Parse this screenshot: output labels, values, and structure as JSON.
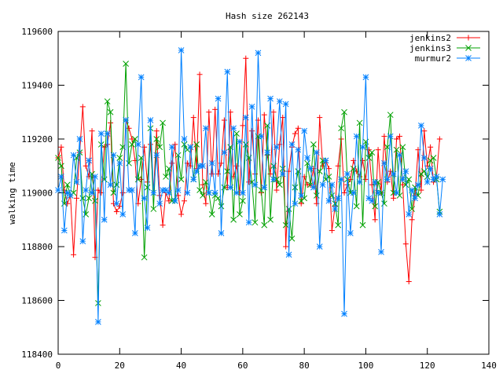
{
  "chart_data": {
    "type": "line",
    "title": "Hash size 262143",
    "xlabel": "",
    "ylabel": "walking time",
    "xlim": [
      0,
      140
    ],
    "ylim": [
      118400,
      119600
    ],
    "xticks": [
      0,
      20,
      40,
      60,
      80,
      100,
      120,
      140
    ],
    "yticks": [
      118400,
      118600,
      118800,
      119000,
      119200,
      119400,
      119600
    ],
    "grid": false,
    "legend": "top-right",
    "series": [
      {
        "name": "jenkins2",
        "color": "#ff0000",
        "marker": "plus",
        "values": [
          119130,
          119170,
          119010,
          118960,
          118990,
          118770,
          118980,
          119150,
          119320,
          119100,
          119060,
          119230,
          118760,
          119010,
          119000,
          119170,
          119180,
          119260,
          118960,
          118930,
          118950,
          119000,
          119270,
          119240,
          119200,
          119120,
          118960,
          119050,
          119170,
          119040,
          119180,
          119000,
          119230,
          118990,
          118880,
          119000,
          118970,
          119110,
          119180,
          118990,
          118920,
          118970,
          119110,
          119100,
          119280,
          119090,
          119440,
          119030,
          118960,
          119300,
          119070,
          119310,
          119070,
          119110,
          119270,
          119020,
          119300,
          119060,
          119100,
          119000,
          119250,
          119500,
          119040,
          119230,
          119070,
          119270,
          119000,
          119290,
          119140,
          119070,
          119300,
          119010,
          119180,
          119280,
          118800,
          119080,
          119170,
          119220,
          119240,
          118960,
          119060,
          119030,
          119030,
          119090,
          118960,
          119280,
          119100,
          119120,
          119090,
          118860,
          118950,
          119100,
          119200,
          119000,
          119030,
          119050,
          119120,
          119080,
          119060,
          119120,
          119050,
          119160,
          119030,
          118900,
          119160,
          119000,
          119210,
          119040,
          119080,
          118980,
          119200,
          119210,
          119030,
          118810,
          118670,
          118900,
          118990,
          119160,
          119010,
          119230,
          119100,
          119170,
          119040,
          119060,
          119200
        ]
      },
      {
        "name": "jenkins3",
        "color": "#00a000",
        "marker": "x",
        "values": [
          119130,
          119100,
          118960,
          119030,
          118990,
          119000,
          119130,
          119150,
          118980,
          118920,
          118980,
          119070,
          118970,
          118590,
          119180,
          119050,
          119340,
          119300,
          119000,
          119030,
          119130,
          119170,
          119480,
          119110,
          119180,
          119200,
          119050,
          119130,
          118760,
          119020,
          119240,
          118940,
          119200,
          119170,
          119260,
          119060,
          119090,
          118970,
          118970,
          119140,
          119050,
          119180,
          119160,
          119170,
          119050,
          119180,
          119010,
          118990,
          119040,
          119000,
          118920,
          118990,
          118980,
          118950,
          119020,
          119080,
          119170,
          118900,
          119220,
          118920,
          118970,
          119180,
          119130,
          119040,
          118890,
          119210,
          119010,
          118880,
          119250,
          118900,
          119100,
          119050,
          119030,
          119090,
          118880,
          118940,
          118830,
          119020,
          119080,
          118970,
          118980,
          119110,
          119030,
          119180,
          118990,
          119080,
          119120,
          119050,
          119060,
          118990,
          118960,
          118880,
          119240,
          119300,
          119050,
          119000,
          119090,
          118950,
          119260,
          118880,
          119190,
          119130,
          119150,
          118950,
          119040,
          119000,
          118960,
          119170,
          119290,
          119000,
          119160,
          118990,
          119170,
          119030,
          119050,
          118940,
          119020,
          118990,
          119070,
          119080,
          119060,
          119120,
          119130,
          119050,
          118930
        ]
      },
      {
        "name": "murmur2",
        "color": "#0080ff",
        "marker": "star",
        "values": [
          119010,
          119060,
          118860,
          119000,
          118990,
          119140,
          119040,
          119200,
          118820,
          119010,
          119120,
          119000,
          119060,
          118520,
          119220,
          118900,
          119220,
          119030,
          119140,
          118960,
          119110,
          118920,
          119270,
          119010,
          119010,
          118850,
          119180,
          119430,
          118980,
          118870,
          119270,
          119000,
          119140,
          118960,
          119010,
          119010,
          119000,
          119170,
          118970,
          119010,
          119530,
          119200,
          119000,
          119170,
          119050,
          119080,
          119100,
          119100,
          119240,
          119000,
          119110,
          119000,
          119350,
          118850,
          119150,
          119450,
          119020,
          119240,
          119000,
          119190,
          119000,
          119280,
          118890,
          119320,
          119030,
          119520,
          119210,
          119020,
          119150,
          119350,
          119050,
          119170,
          119340,
          119070,
          119330,
          118770,
          119180,
          118960,
          119160,
          118990,
          119230,
          119130,
          119090,
          119020,
          119150,
          118800,
          119030,
          119120,
          118970,
          119030,
          118940,
          118980,
          119050,
          118550,
          119070,
          118850,
          119000,
          119210,
          119040,
          119170,
          119430,
          118980,
          118970,
          119040,
          119000,
          118780,
          119110,
          119050,
          119210,
          119070,
          119000,
          119140,
          119050,
          119080,
          118920,
          119010,
          118980,
          119030,
          119250,
          119130,
          119040,
          119090,
          119050,
          119060,
          118920,
          119050
        ]
      }
    ]
  }
}
